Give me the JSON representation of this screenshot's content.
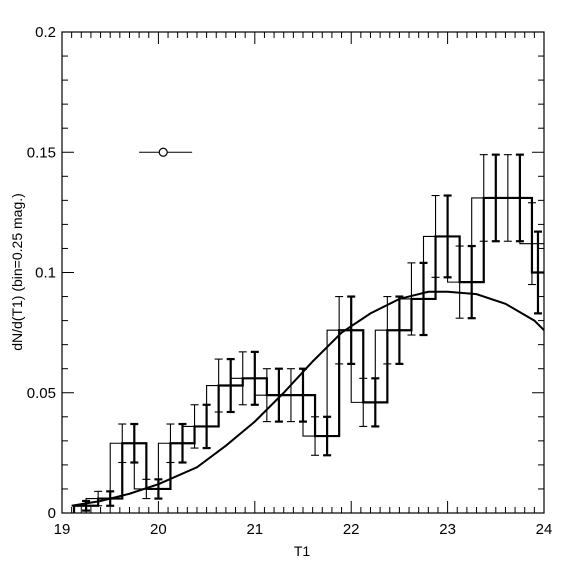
{
  "chart_data": {
    "type": "line",
    "xlabel": "T1",
    "ylabel": "dN/d(T1) (bin=0.25 mag.)",
    "xlim": [
      19,
      24
    ],
    "ylim": [
      0,
      0.2
    ],
    "x_ticks": [
      19,
      20,
      21,
      22,
      23,
      24
    ],
    "x_tick_labels": [
      "19",
      "20",
      "21",
      "22",
      "23",
      "24"
    ],
    "y_ticks": [
      0,
      0.05,
      0.1,
      0.15,
      0.2
    ],
    "y_tick_labels": [
      "0",
      "0.05",
      "0.1",
      "0.15",
      "0.2"
    ],
    "grid": false,
    "histograms": [
      {
        "style": "thin",
        "bin_edges": [
          19.25,
          19.5,
          19.75,
          20.0,
          20.25,
          20.5,
          20.75,
          21.0,
          21.25,
          21.5,
          21.75,
          22.0,
          22.25,
          22.5,
          22.75,
          23.0,
          23.25,
          23.5,
          23.75,
          24.0
        ],
        "values": [
          0.006,
          0.029,
          0.01,
          0.029,
          0.036,
          0.053,
          0.056,
          0.049,
          0.049,
          0.032,
          0.076,
          0.046,
          0.076,
          0.089,
          0.115,
          0.096,
          0.131,
          0.131,
          0.112
        ],
        "errors": [
          0.003,
          0.008,
          0.004,
          0.008,
          0.009,
          0.011,
          0.011,
          0.011,
          0.011,
          0.008,
          0.014,
          0.01,
          0.014,
          0.015,
          0.017,
          0.015,
          0.018,
          0.018,
          0.017
        ]
      },
      {
        "style": "thick",
        "bin_edges": [
          19.125,
          19.375,
          19.625,
          19.875,
          20.125,
          20.375,
          20.625,
          20.875,
          21.125,
          21.375,
          21.625,
          21.875,
          22.125,
          22.375,
          22.625,
          22.875,
          23.125,
          23.375,
          23.625,
          23.875,
          24.0
        ],
        "values": [
          0.003,
          0.006,
          0.029,
          0.01,
          0.029,
          0.036,
          0.053,
          0.056,
          0.049,
          0.049,
          0.032,
          0.076,
          0.046,
          0.076,
          0.089,
          0.115,
          0.096,
          0.131,
          0.131,
          0.1
        ],
        "errors": [
          0.002,
          0.003,
          0.008,
          0.004,
          0.008,
          0.009,
          0.011,
          0.011,
          0.011,
          0.011,
          0.008,
          0.014,
          0.01,
          0.014,
          0.015,
          0.017,
          0.015,
          0.018,
          0.018,
          0.017
        ]
      }
    ],
    "model_curve": {
      "x": [
        19.1,
        19.4,
        19.7,
        20.0,
        20.4,
        20.7,
        21.0,
        21.3,
        21.6,
        21.9,
        22.2,
        22.5,
        22.8,
        23.0,
        23.3,
        23.6,
        23.9,
        24.0
      ],
      "y": [
        0.003,
        0.005,
        0.008,
        0.012,
        0.019,
        0.028,
        0.038,
        0.05,
        0.063,
        0.075,
        0.083,
        0.089,
        0.092,
        0.092,
        0.091,
        0.087,
        0.08,
        0.076
      ]
    },
    "error_marker": {
      "x": 20.05,
      "y": 0.15,
      "xerr_low": 0.25,
      "xerr_high": 0.3
    }
  }
}
